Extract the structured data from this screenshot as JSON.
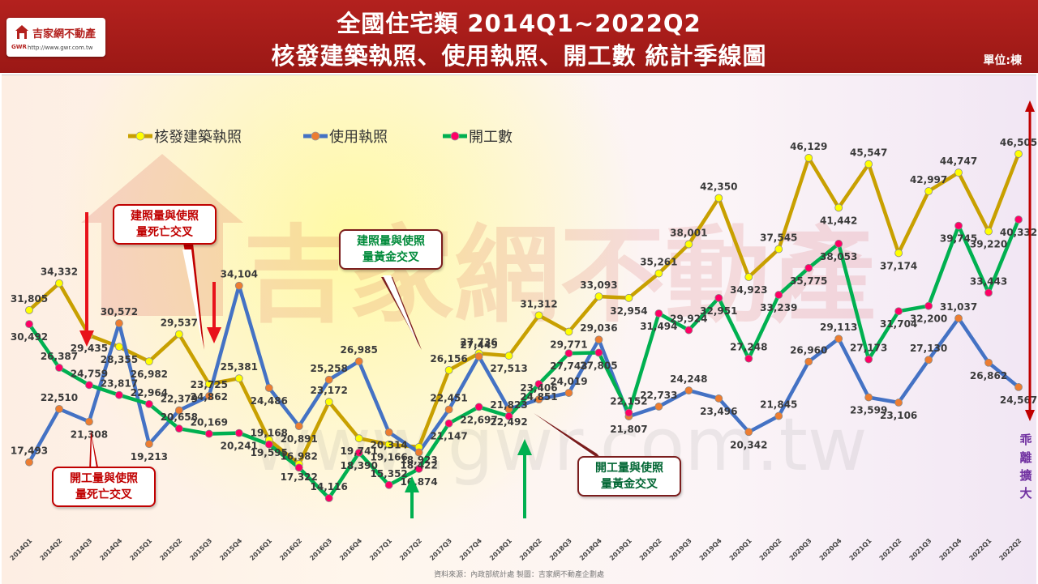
{
  "header": {
    "title_line1": "全國住宅類 2014Q1~2022Q2",
    "title_line2": "核發建築執照、使用執照、開工數 統計季線圖",
    "unit": "單位:棟"
  },
  "logo": {
    "name": "吉家網不動產",
    "gwr": "GWR",
    "url": "http://www.gwr.com.tw"
  },
  "watermark": "吉家網不動產",
  "watermark_url": "www.gwr.com.tw",
  "callouts": {
    "building_vs_use_death": "建照量與使照\n量死亡交叉",
    "building_vs_use_golden": "建照量與使照\n量黃金交叉",
    "start_vs_use_death": "開工量與使照\n量死亡交叉",
    "start_vs_use_golden": "開工量與使照\n量黃金交叉"
  },
  "right_label": "乖離擴大",
  "source": "資料來源：內政部統計處 製圖：吉家網不動產企劃處",
  "colors": {
    "building": "#c8a000",
    "use": "#4472c4",
    "start": "#00b050",
    "arrow": "#e8121b",
    "right_arrow": "#c00000"
  },
  "chart_data": {
    "type": "line",
    "categories": [
      "2014Q1",
      "2014Q2",
      "2014Q3",
      "2014Q4",
      "2015Q1",
      "2015Q2",
      "2015Q3",
      "2015Q4",
      "2016Q1",
      "2016Q2",
      "2016Q3",
      "2016Q4",
      "2017Q1",
      "2017Q2",
      "2017Q3",
      "2017Q4",
      "2018Q1",
      "2018Q2",
      "2018Q3",
      "2018Q4",
      "2019Q1",
      "2019Q2",
      "2019Q3",
      "2019Q4",
      "2020Q1",
      "2020Q2",
      "2020Q3",
      "2020Q4",
      "2021Q1",
      "2021Q2",
      "2021Q3",
      "2021Q4",
      "2022Q1",
      "2022Q2"
    ],
    "series": [
      {
        "name": "核發建築執照",
        "key": "building",
        "marker": "#ffff00",
        "values": [
          31805,
          34332,
          29435,
          28355,
          26982,
          29537,
          24862,
          25381,
          19595,
          17322,
          23172,
          19741,
          19166,
          18923,
          26156,
          27736,
          27513,
          31312,
          29771,
          33093,
          32954,
          35261,
          38001,
          42350,
          34923,
          37545,
          46129,
          41442,
          45547,
          37174,
          42997,
          44747,
          39220,
          46505
        ]
      },
      {
        "name": "使用執照",
        "key": "use",
        "marker": "#ed7d31",
        "values": [
          17493,
          22510,
          21308,
          30572,
          19213,
          22379,
          23725,
          34104,
          24486,
          20891,
          25258,
          26985,
          20314,
          18422,
          22451,
          27449,
          22492,
          23406,
          24019,
          29036,
          21807,
          22733,
          24248,
          23496,
          20342,
          21845,
          26960,
          29113,
          23599,
          23106,
          27130,
          31037,
          26862,
          24567
        ]
      },
      {
        "name": "開工數",
        "key": "start",
        "marker": "#ff0066",
        "values": [
          30492,
          26387,
          24759,
          23817,
          22964,
          20658,
          20169,
          20241,
          19168,
          16982,
          14116,
          18390,
          15352,
          16874,
          21147,
          22697,
          21823,
          24851,
          27743,
          27805,
          22152,
          31494,
          29924,
          32951,
          27248,
          33239,
          35775,
          38053,
          27173,
          31704,
          32200,
          39745,
          33443,
          40332
        ]
      }
    ],
    "ylim": [
      10000,
      50000
    ],
    "grid": false,
    "legend": "top-left",
    "xlabel": "",
    "ylabel": ""
  }
}
